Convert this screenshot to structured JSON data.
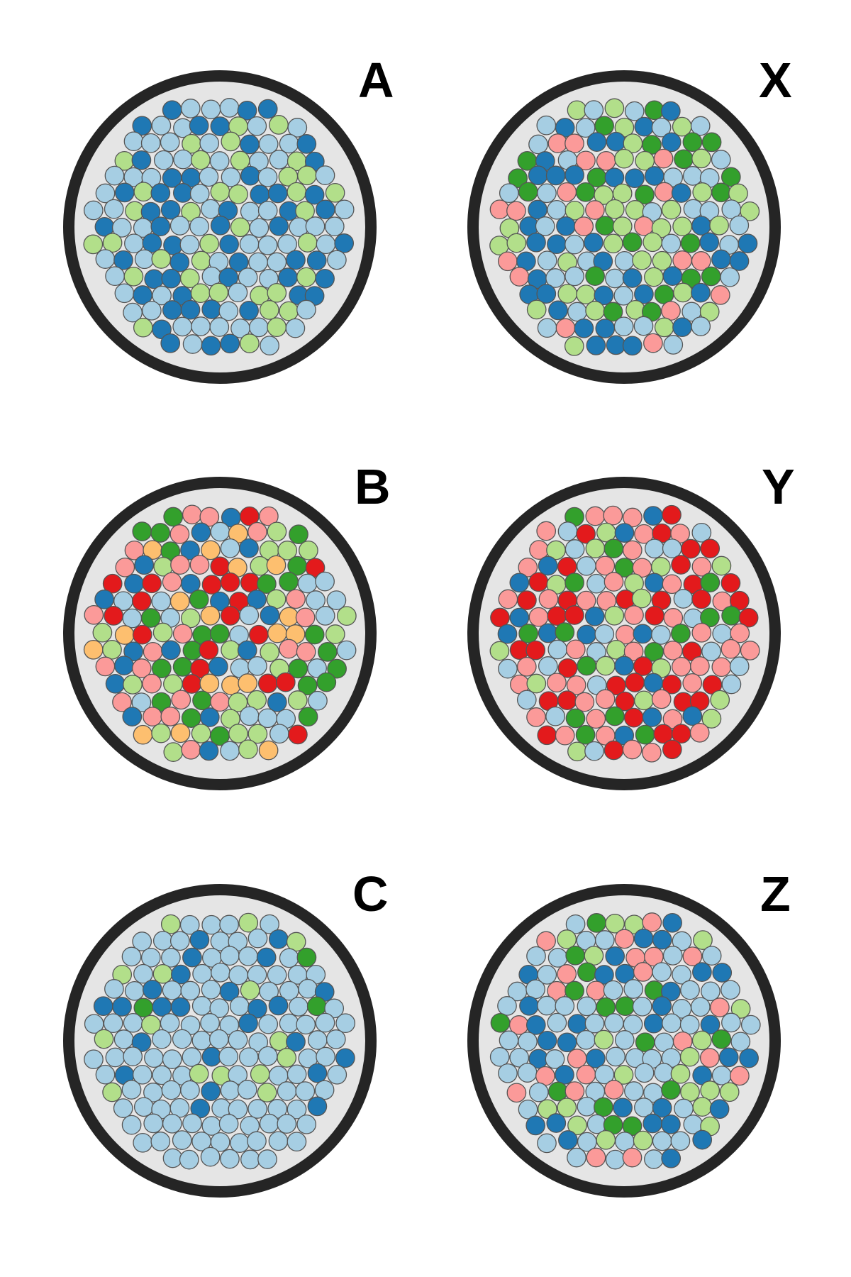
{
  "palette": {
    "light_blue": "#a6cee3",
    "dark_blue": "#1f78b4",
    "light_green": "#b2df8a",
    "dark_green": "#33a02c",
    "pink": "#fb9a99",
    "red": "#e31a1c",
    "orange": "#fdbf6f",
    "background": "#e5e5e5",
    "rim": "#252525"
  },
  "panels": [
    {
      "label": "A",
      "composition": {
        "light_blue": 0.44,
        "dark_blue": 0.33,
        "light_green": 0.23
      }
    },
    {
      "label": "X",
      "composition": {
        "light_blue": 0.24,
        "dark_blue": 0.26,
        "light_green": 0.24,
        "dark_green": 0.14,
        "pink": 0.12
      }
    },
    {
      "label": "B",
      "composition": {
        "light_blue": 0.15,
        "dark_blue": 0.13,
        "light_green": 0.17,
        "dark_green": 0.16,
        "pink": 0.16,
        "red": 0.12,
        "orange": 0.11
      }
    },
    {
      "label": "Y",
      "composition": {
        "light_blue": 0.14,
        "dark_blue": 0.1,
        "light_green": 0.11,
        "dark_green": 0.1,
        "pink": 0.3,
        "red": 0.25
      }
    },
    {
      "label": "C",
      "composition": {
        "light_blue": 0.74,
        "dark_blue": 0.15,
        "light_green": 0.09,
        "dark_green": 0.02
      }
    },
    {
      "label": "Z",
      "composition": {
        "light_blue": 0.43,
        "dark_blue": 0.21,
        "light_green": 0.13,
        "dark_green": 0.09,
        "pink": 0.14
      }
    }
  ]
}
